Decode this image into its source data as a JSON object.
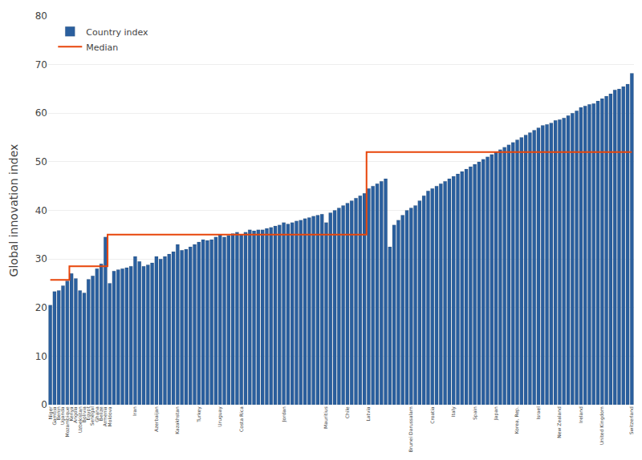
{
  "chart_data": {
    "type": "bar",
    "y_label": "Global innovation index",
    "categories": [
      "Niger",
      "Gambia",
      "Benin",
      "Uganda",
      "Mozambique",
      "Kenya",
      "Angola",
      "Uzbekistan",
      "Bolivia",
      "Egypt",
      "Senegal",
      "Ghana",
      "Belize",
      "Armenia",
      "Moldova",
      null,
      null,
      null,
      null,
      null,
      "Iran",
      null,
      null,
      null,
      null,
      "Azerbaijan",
      null,
      null,
      null,
      null,
      "Kazakhstan",
      null,
      null,
      null,
      null,
      "Turkey",
      null,
      null,
      null,
      null,
      "Uruguay",
      null,
      null,
      null,
      null,
      "Costa Rica",
      null,
      null,
      null,
      null,
      null,
      null,
      null,
      null,
      null,
      "Jordan",
      null,
      null,
      null,
      null,
      null,
      null,
      null,
      null,
      null,
      "Mauritius",
      null,
      null,
      null,
      null,
      "Chile",
      null,
      null,
      null,
      null,
      "Latvia",
      null,
      null,
      null,
      null,
      null,
      null,
      null,
      null,
      null,
      "Brunei Darussalam",
      null,
      null,
      null,
      null,
      "Croatia",
      null,
      null,
      null,
      null,
      "Italy",
      null,
      null,
      null,
      null,
      "Spain",
      null,
      null,
      null,
      null,
      "Japan",
      null,
      null,
      null,
      null,
      "Korea, Rep.",
      null,
      null,
      null,
      null,
      "Israel",
      null,
      null,
      null,
      null,
      "New Zealand",
      null,
      null,
      null,
      null,
      "Ireland",
      null,
      null,
      null,
      null,
      "United Kingdom",
      null,
      null,
      null,
      null,
      null,
      null,
      "Switzerland"
    ],
    "series": [
      {
        "name": "Country index",
        "type": "bar",
        "color": "#2a5f9e",
        "values": [
          20.5,
          23.3,
          23.5,
          24.5,
          25.5,
          27.0,
          26.0,
          23.5,
          23.0,
          25.8,
          26.5,
          28.0,
          29.0,
          34.5,
          25.0,
          27.5,
          27.8,
          28.0,
          28.2,
          28.5,
          30.5,
          29.5,
          28.5,
          28.8,
          29.2,
          30.5,
          30.0,
          30.5,
          31.0,
          31.5,
          33.0,
          31.8,
          32.0,
          32.5,
          33.0,
          33.5,
          34.0,
          33.8,
          34.0,
          34.5,
          35.0,
          34.5,
          34.8,
          35.2,
          35.5,
          35.0,
          35.5,
          36.0,
          35.8,
          36.0,
          36.0,
          36.3,
          36.5,
          36.8,
          37.0,
          37.5,
          37.2,
          37.5,
          37.8,
          38.0,
          38.3,
          38.5,
          38.8,
          39.0,
          39.2,
          37.5,
          39.5,
          40.0,
          40.5,
          41.0,
          41.5,
          42.0,
          42.5,
          43.0,
          43.5,
          44.5,
          45.0,
          45.5,
          46.0,
          46.5,
          32.5,
          37.0,
          38.0,
          39.0,
          40.0,
          40.5,
          41.0,
          42.0,
          43.0,
          44.0,
          44.5,
          45.0,
          45.5,
          46.0,
          46.5,
          47.0,
          47.5,
          48.0,
          48.5,
          49.0,
          49.5,
          50.0,
          50.5,
          51.0,
          51.5,
          52.0,
          52.5,
          53.0,
          53.5,
          54.0,
          54.5,
          55.0,
          55.5,
          56.0,
          56.5,
          57.0,
          57.5,
          57.7,
          58.0,
          58.5,
          58.7,
          59.0,
          59.5,
          60.0,
          60.5,
          61.2,
          61.5,
          61.8,
          62.0,
          62.5,
          63.0,
          63.5,
          64.0,
          64.8,
          65.0,
          65.5,
          66.0,
          68.2
        ]
      },
      {
        "name": "Median",
        "type": "line",
        "line_style": "step",
        "color": "#e8450a",
        "values": [
          25.7,
          25.7,
          25.7,
          25.7,
          25.7,
          28.5,
          28.5,
          28.5,
          28.5,
          28.5,
          28.5,
          28.5,
          28.5,
          28.5,
          35.0,
          35.0,
          35.0,
          35.0,
          35.0,
          35.0,
          35.0,
          35.0,
          35.0,
          35.0,
          35.0,
          35.0,
          35.0,
          35.0,
          35.0,
          35.0,
          35.0,
          35.0,
          35.0,
          35.0,
          35.0,
          35.0,
          35.0,
          35.0,
          35.0,
          35.0,
          35.0,
          35.0,
          35.0,
          35.0,
          35.0,
          35.0,
          35.0,
          35.0,
          35.0,
          35.0,
          35.0,
          35.0,
          35.0,
          35.0,
          35.0,
          35.0,
          35.0,
          35.0,
          35.0,
          35.0,
          35.0,
          35.0,
          35.0,
          35.0,
          35.0,
          35.0,
          35.0,
          35.0,
          35.0,
          35.0,
          35.0,
          35.0,
          35.0,
          35.0,
          35.0,
          52.0,
          52.0,
          52.0,
          52.0,
          52.0,
          52.0,
          52.0,
          52.0,
          52.0,
          52.0,
          52.0,
          52.0,
          52.0,
          52.0,
          52.0,
          52.0,
          52.0,
          52.0,
          52.0,
          52.0,
          52.0,
          52.0,
          52.0,
          52.0,
          52.0,
          52.0,
          52.0,
          52.0,
          52.0,
          52.0,
          52.0,
          52.0,
          52.0,
          52.0,
          52.0,
          52.0,
          52.0,
          52.0,
          52.0,
          52.0,
          52.0,
          52.0,
          52.0,
          52.0,
          52.0,
          52.0,
          52.0,
          52.0,
          52.0,
          52.0,
          52.0,
          52.0,
          52.0,
          52.0,
          52.0,
          52.0,
          52.0,
          52.0,
          52.0,
          52.0,
          52.0,
          52.0,
          52.0
        ]
      }
    ],
    "ylim": [
      0,
      80
    ],
    "yticks": [
      0,
      10,
      20,
      30,
      40,
      50,
      60,
      70,
      80
    ],
    "grid": true,
    "legend": "upper left"
  }
}
